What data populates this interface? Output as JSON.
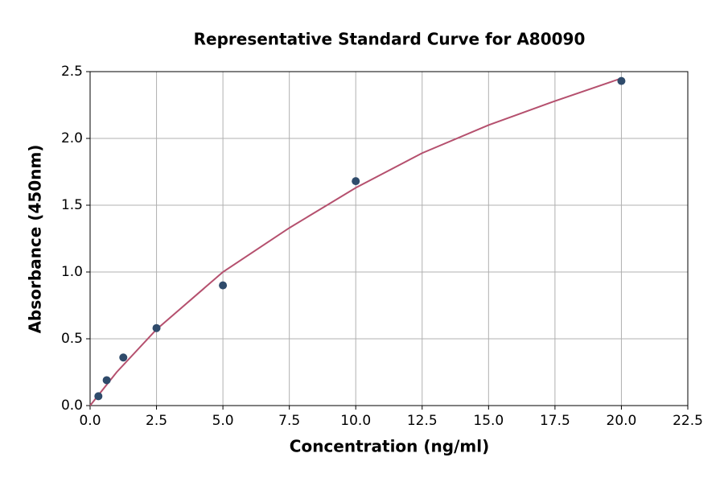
{
  "chart_data": {
    "type": "scatter",
    "title": "Representative Standard Curve for A80090",
    "x_label": "Concentration (ng/ml)",
    "y_label": "Absorbance (450nm)",
    "series": [
      {
        "style": "line",
        "color": "#b5506e",
        "x": [
          0,
          1,
          2.5,
          5,
          7.5,
          10,
          12.5,
          15,
          17.5,
          20
        ],
        "values": [
          0,
          0.25,
          0.57,
          1.0,
          1.33,
          1.63,
          1.89,
          2.1,
          2.28,
          2.45
        ]
      },
      {
        "style": "points",
        "color": "#2f4b6b",
        "x": [
          0.3125,
          0.625,
          1.25,
          2.5,
          5,
          10,
          20
        ],
        "values": [
          0.07,
          0.19,
          0.36,
          0.58,
          0.9,
          1.68,
          2.43
        ]
      }
    ],
    "xlim": [
      0,
      22.5
    ],
    "xticks": [
      {
        "value": 0,
        "label": "0.0"
      },
      2.5,
      {
        "value": 5,
        "label": "5.0"
      },
      7.5,
      {
        "value": 10,
        "label": "10.0"
      },
      12.5,
      {
        "value": 15,
        "label": "15.0"
      },
      17.5,
      {
        "value": 20,
        "label": "20.0"
      },
      22.5
    ],
    "ylim": [
      0,
      2.5
    ],
    "yticks": [
      {
        "value": 0,
        "label": "0.0"
      },
      0.5,
      {
        "value": 1,
        "label": "1.0"
      },
      1.5,
      {
        "value": 2,
        "label": "2.0"
      },
      2.5
    ],
    "grid": true
  }
}
